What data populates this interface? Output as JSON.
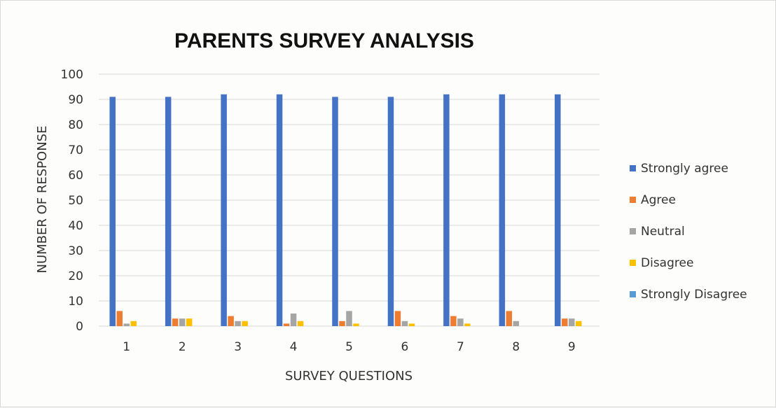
{
  "chart_data": {
    "type": "bar",
    "title": "PARENTS SURVEY ANALYSIS",
    "xlabel": "SURVEY QUESTIONS",
    "ylabel": "NUMBER OF RESPONSE",
    "categories": [
      "1",
      "2",
      "3",
      "4",
      "5",
      "6",
      "7",
      "8",
      "9"
    ],
    "ylim": [
      0,
      100
    ],
    "yticks": [
      0,
      10,
      20,
      30,
      40,
      50,
      60,
      70,
      80,
      90,
      100
    ],
    "grid": true,
    "legend_position": "right",
    "series": [
      {
        "name": "Strongly agree",
        "color": "#4472c4",
        "values": [
          91,
          91,
          92,
          92,
          91,
          91,
          92,
          92,
          92
        ]
      },
      {
        "name": "Agree",
        "color": "#ed7d31",
        "values": [
          6,
          3,
          4,
          1,
          2,
          6,
          4,
          6,
          3
        ]
      },
      {
        "name": "Neutral",
        "color": "#a5a5a5",
        "values": [
          1,
          3,
          2,
          5,
          6,
          2,
          3,
          2,
          3
        ]
      },
      {
        "name": "Disagree",
        "color": "#ffc000",
        "values": [
          2,
          3,
          2,
          2,
          1,
          1,
          1,
          0,
          2
        ]
      },
      {
        "name": "Strongly Disagree",
        "color": "#5b9bd5",
        "values": [
          0,
          0,
          0,
          0,
          0,
          0,
          0,
          0,
          0
        ]
      }
    ]
  }
}
